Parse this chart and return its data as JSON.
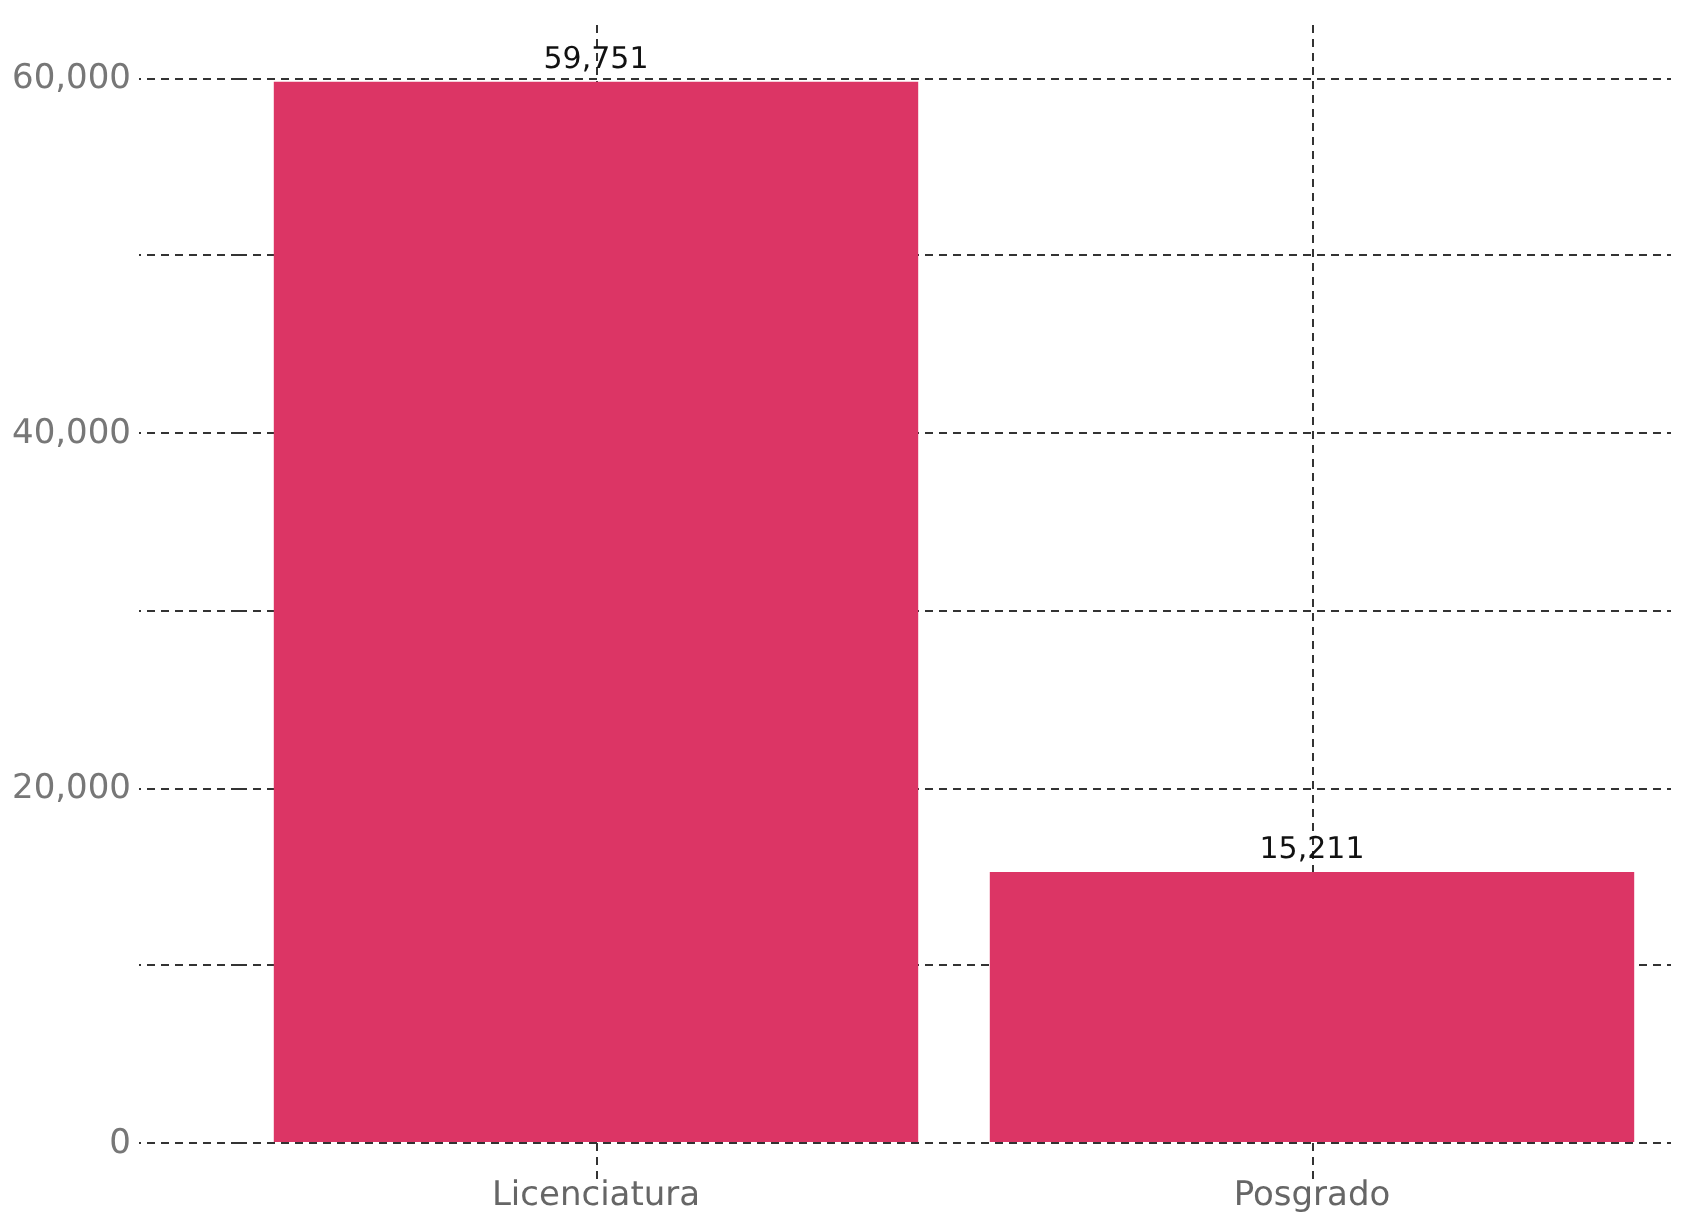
{
  "chart_data": {
    "type": "bar",
    "categories": [
      "Licenciatura",
      "Posgrado"
    ],
    "values": [
      59751,
      15211
    ],
    "value_labels": [
      "59,751",
      "15,211"
    ],
    "color": "#dc3565",
    "ylim": [
      0,
      63000
    ],
    "yticks": [
      {
        "value": 0,
        "label": "0"
      },
      {
        "value": 10000,
        "label": null
      },
      {
        "value": 20000,
        "label": "20,000"
      },
      {
        "value": 30000,
        "label": null
      },
      {
        "value": 40000,
        "label": "40,000"
      },
      {
        "value": 50000,
        "label": null
      },
      {
        "value": 60000,
        "label": "60,000"
      }
    ],
    "grid": true
  }
}
